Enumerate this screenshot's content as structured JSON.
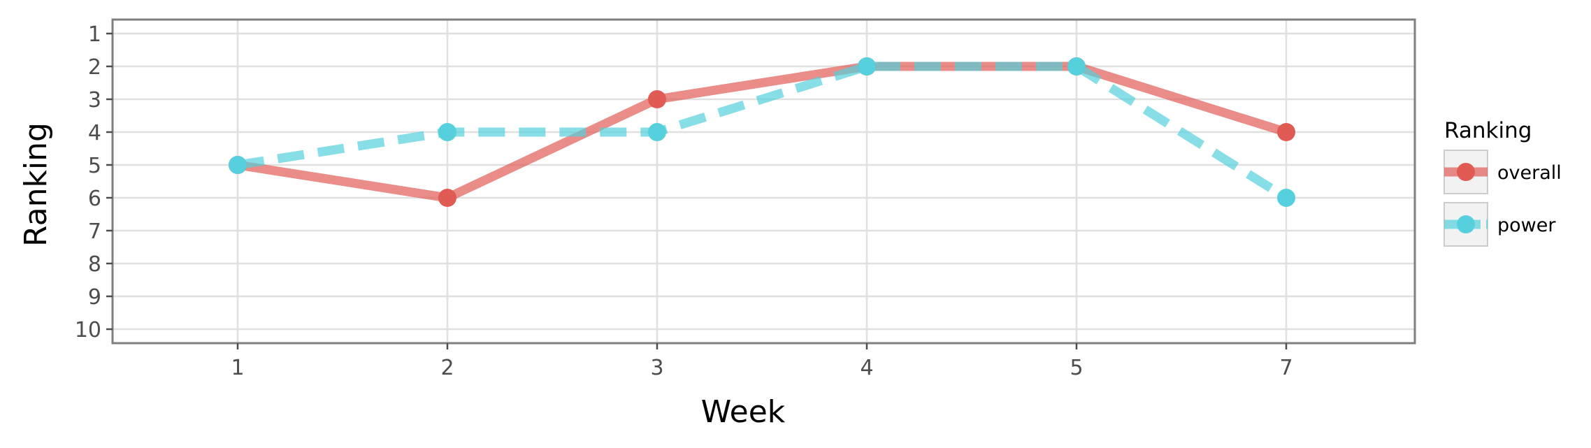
{
  "chart_data": {
    "type": "line",
    "title": "",
    "xlabel": "Week",
    "ylabel": "Ranking",
    "categories": [
      "1",
      "2",
      "3",
      "4",
      "5",
      "7"
    ],
    "y_ticks": [
      "1",
      "2",
      "3",
      "4",
      "5",
      "6",
      "7",
      "8",
      "9",
      "10"
    ],
    "ylim": [
      1,
      10
    ],
    "y_reversed": true,
    "grid": true,
    "legend": {
      "title": "Ranking",
      "position": "right"
    },
    "series": [
      {
        "name": "overall",
        "values": [
          5,
          6,
          3,
          2,
          2,
          4
        ],
        "color": "#e15b55",
        "line_style": "solid"
      },
      {
        "name": "power",
        "values": [
          5,
          4,
          4,
          2,
          2,
          6
        ],
        "color": "#55d0dc",
        "line_style": "dashed"
      }
    ]
  },
  "colors": {
    "panel_border": "#7f7f7f",
    "grid": "#e0e0e0",
    "tick": "#4d4d4d"
  }
}
